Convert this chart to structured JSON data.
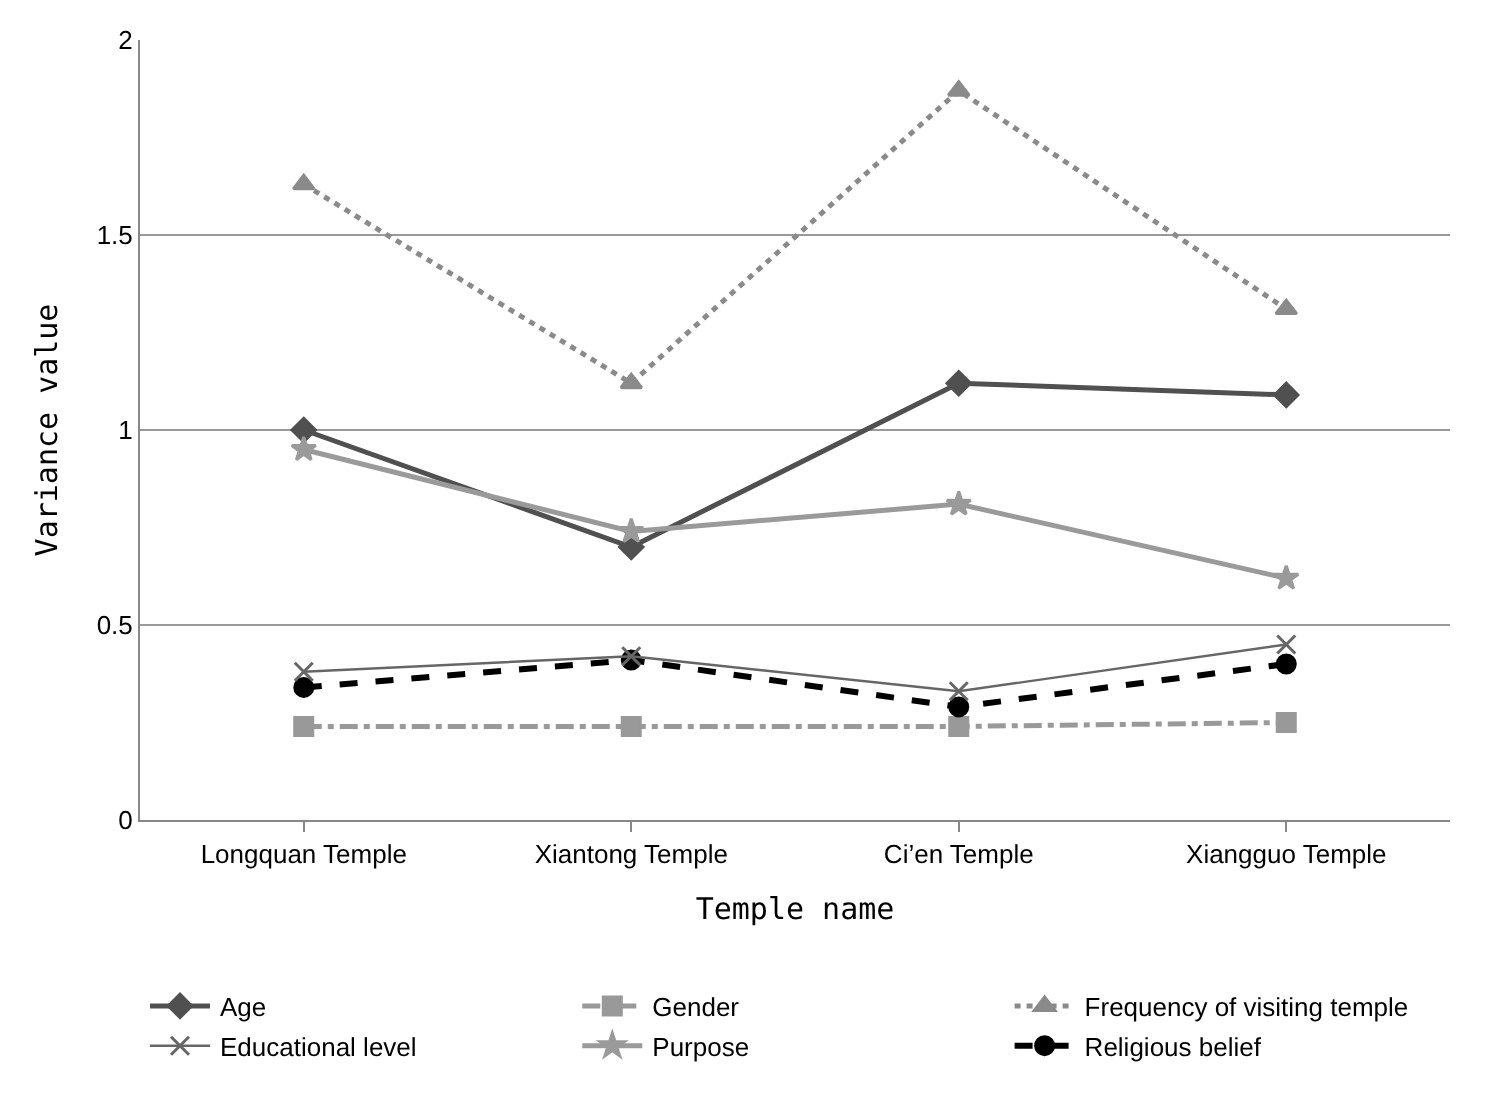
{
  "chart_data": {
    "type": "line",
    "xlabel": "Temple name",
    "ylabel": "Variance value",
    "categories": [
      "Longquan Temple",
      "Xiantong Temple",
      "Ci’en Temple",
      "Xiangguo Temple"
    ],
    "series": [
      {
        "name": "Age",
        "color": "#505050",
        "marker": "diamond",
        "line_style": "solid",
        "values": [
          1.0,
          0.7,
          1.12,
          1.09
        ]
      },
      {
        "name": "Gender",
        "color": "#999999",
        "marker": "square",
        "line_style": "dashdot",
        "values": [
          0.24,
          0.24,
          0.24,
          0.25
        ]
      },
      {
        "name": "Frequency of visiting temple",
        "color": "#8a8a8a",
        "marker": "triangle",
        "line_style": "dotted",
        "values": [
          1.63,
          1.12,
          1.87,
          1.31
        ]
      },
      {
        "name": "Educational level",
        "color": "#666666",
        "marker": "cross",
        "line_style": "solid",
        "values": [
          0.38,
          0.42,
          0.33,
          0.45
        ]
      },
      {
        "name": "Purpose",
        "color": "#9a9a9a",
        "marker": "star",
        "line_style": "solid",
        "values": [
          0.95,
          0.74,
          0.81,
          0.62
        ]
      },
      {
        "name": "Religious belief",
        "color": "#000000",
        "marker": "circle",
        "line_style": "dashed",
        "values": [
          0.34,
          0.41,
          0.29,
          0.4
        ]
      }
    ],
    "ylim": [
      0,
      2
    ],
    "yticks": [
      0,
      0.5,
      1,
      1.5,
      2
    ],
    "grid": "y",
    "legend": "bottom"
  }
}
